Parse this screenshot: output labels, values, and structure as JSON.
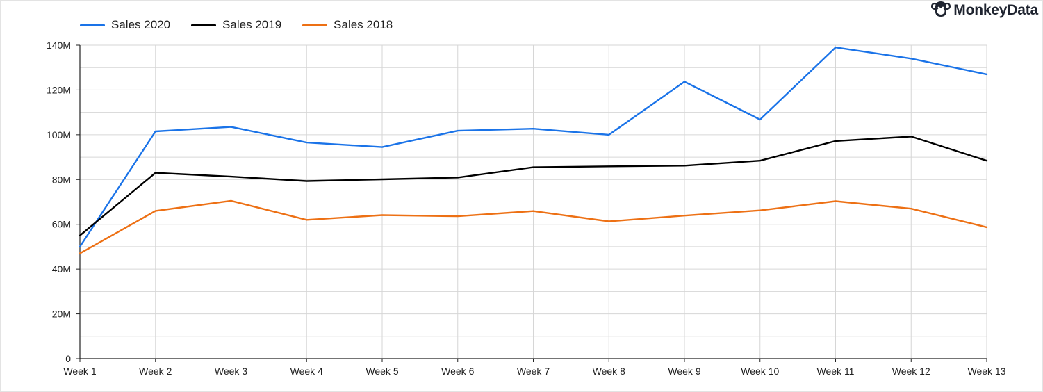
{
  "brand": {
    "name": "MonkeyData",
    "icon": "monkey-face-icon"
  },
  "colors": {
    "sales_2020": "#1a73e8",
    "sales_2019": "#000000",
    "sales_2018": "#ed7014"
  },
  "chart_data": {
    "type": "line",
    "title": "",
    "xlabel": "",
    "ylabel": "",
    "legend_position": "top-left",
    "grid": true,
    "categories": [
      "Week 1",
      "Week 2",
      "Week 3",
      "Week 4",
      "Week 5",
      "Week 6",
      "Week 7",
      "Week 8",
      "Week 9",
      "Week 10",
      "Week 11",
      "Week 12",
      "Week 13"
    ],
    "ylim": [
      0,
      140000000
    ],
    "y_ticks": [
      0,
      20000000,
      40000000,
      60000000,
      80000000,
      100000000,
      120000000,
      140000000
    ],
    "y_tick_labels": [
      "0",
      "20M",
      "40M",
      "60M",
      "80M",
      "100M",
      "120M",
      "140M"
    ],
    "series": [
      {
        "name": "Sales 2020",
        "color": "#1a73e8",
        "values": [
          50000000,
          101500000,
          103500000,
          96500000,
          94500000,
          101800000,
          102700000,
          100000000,
          123700000,
          106800000,
          139000000,
          134000000,
          127000000
        ]
      },
      {
        "name": "Sales 2019",
        "color": "#000000",
        "values": [
          55000000,
          83000000,
          81300000,
          79300000,
          80100000,
          80900000,
          85500000,
          85900000,
          86200000,
          88400000,
          97200000,
          99200000,
          88400000
        ]
      },
      {
        "name": "Sales 2018",
        "color": "#ed7014",
        "values": [
          47000000,
          66000000,
          70500000,
          62000000,
          64100000,
          63600000,
          65900000,
          61300000,
          63900000,
          66200000,
          70300000,
          67000000,
          58700000
        ]
      }
    ]
  }
}
